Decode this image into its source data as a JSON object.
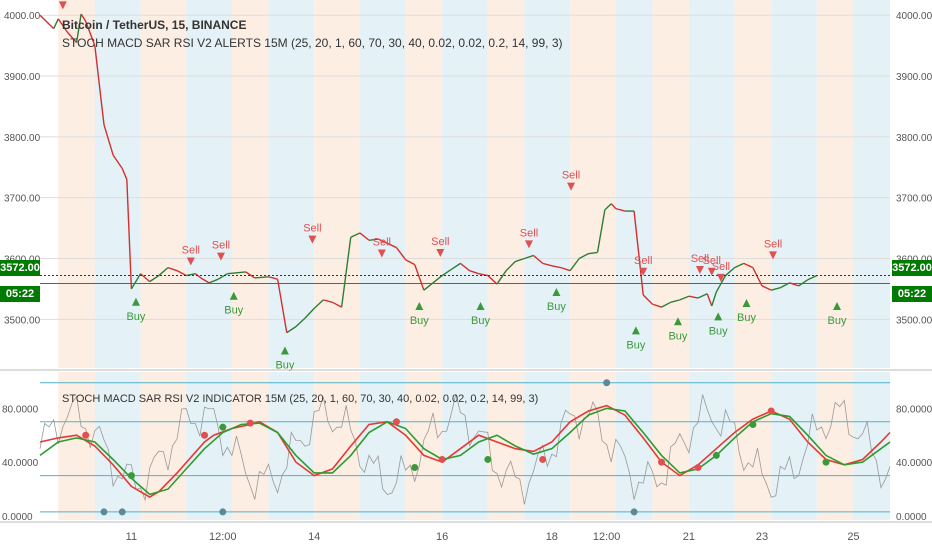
{
  "header": {
    "symbol": "Bitcoin / TetherUS, 15, BINANCE",
    "strategy": "STOCH MACD SAR RSI V2 ALERTS 15M (25, 20, 1, 60, 70, 30, 40, 0.02, 0.02, 0.2, 14, 99, 3)",
    "indicator": "STOCH MACD SAR RSI V2 INDICATOR 15M (25, 20, 1, 60, 70, 30, 40, 0.02, 0.02, 0.2, 14, 99, 3)"
  },
  "price_badge": {
    "value": "3572.00",
    "countdown": "05:22"
  },
  "colors": {
    "up": "#2e7d32",
    "down": "#d32f2f",
    "badge": "#007a00",
    "bg_red": "#fdeee4",
    "bg_blue": "#e4f1f6",
    "grid": "#eeeeee",
    "k_line": "#e53935",
    "d_line": "#2e9b2e",
    "rsi": "#999999",
    "level": "#4fb3c7"
  },
  "chart_data": [
    {
      "type": "line",
      "title": "Bitcoin / TetherUS, 15, BINANCE",
      "x_ticks": [
        "11",
        "12:00",
        "14",
        "16",
        "18",
        "12:00",
        "21",
        "23",
        "25"
      ],
      "y_ticks": [
        "4000.00",
        "3900.00",
        "3800.00",
        "3700.00",
        "3600.00",
        "3500.00"
      ],
      "ylim": [
        3420,
        4025
      ],
      "series": [
        {
          "values": [
            [
              0,
              4000
            ],
            [
              1.5,
              3978
            ],
            [
              2,
              3994
            ],
            [
              3,
              3972
            ],
            [
              4,
              3955
            ],
            [
              4.5,
              4002
            ],
            [
              5,
              3990
            ],
            [
              6,
              3950
            ],
            [
              7,
              3820
            ],
            [
              8,
              3770
            ],
            [
              9,
              3748
            ],
            [
              9.5,
              3730
            ],
            [
              10,
              3550
            ],
            [
              11,
              3575
            ],
            [
              12,
              3562
            ],
            [
              13,
              3572
            ],
            [
              14,
              3585
            ],
            [
              15,
              3580
            ],
            [
              16,
              3572
            ],
            [
              17,
              3575
            ],
            [
              17.6,
              3568
            ],
            [
              18.5,
              3560
            ],
            [
              19.5,
              3566
            ],
            [
              20.5,
              3575
            ],
            [
              22.5,
              3578
            ],
            [
              23.5,
              3568
            ],
            [
              25,
              3570
            ],
            [
              26,
              3566
            ],
            [
              27,
              3478
            ],
            [
              28,
              3488
            ],
            [
              29,
              3502
            ],
            [
              30,
              3518
            ],
            [
              31,
              3532
            ],
            [
              32,
              3528
            ],
            [
              33,
              3520
            ],
            [
              34,
              3635
            ],
            [
              35,
              3642
            ],
            [
              36,
              3630
            ],
            [
              37,
              3632
            ],
            [
              38,
              3625
            ],
            [
              39,
              3618
            ],
            [
              40,
              3598
            ],
            [
              41,
              3590
            ],
            [
              42,
              3548
            ],
            [
              43,
              3560
            ],
            [
              44,
              3572
            ],
            [
              45,
              3582
            ],
            [
              46,
              3592
            ],
            [
              47,
              3580
            ],
            [
              48,
              3575
            ],
            [
              49,
              3572
            ],
            [
              50,
              3558
            ],
            [
              51,
              3580
            ],
            [
              52,
              3595
            ],
            [
              53,
              3600
            ],
            [
              54,
              3605
            ],
            [
              55,
              3592
            ],
            [
              56,
              3588
            ],
            [
              57,
              3585
            ],
            [
              58,
              3580
            ],
            [
              59,
              3600
            ],
            [
              60,
              3608
            ],
            [
              61,
              3610
            ],
            [
              61.8,
              3680
            ],
            [
              62.5,
              3690
            ],
            [
              63,
              3682
            ],
            [
              64,
              3678
            ],
            [
              65,
              3678
            ],
            [
              66,
              3540
            ],
            [
              67,
              3525
            ],
            [
              68,
              3520
            ],
            [
              69,
              3528
            ],
            [
              70,
              3532
            ],
            [
              71,
              3538
            ],
            [
              72,
              3535
            ],
            [
              73,
              3542
            ],
            [
              73.5,
              3522
            ],
            [
              74,
              3545
            ],
            [
              75,
              3572
            ],
            [
              76,
              3585
            ],
            [
              77,
              3592
            ],
            [
              78,
              3585
            ],
            [
              79,
              3555
            ],
            [
              80,
              3548
            ],
            [
              81,
              3552
            ],
            [
              82,
              3560
            ],
            [
              83,
              3555
            ],
            [
              84,
              3565
            ],
            [
              85,
              3572
            ]
          ]
        }
      ],
      "signals": [
        {
          "label": "Sell",
          "x": 2.5,
          "y": 4003
        },
        {
          "label": "Sell",
          "x": 16.5,
          "y": 3582
        },
        {
          "label": "Sell",
          "x": 19.8,
          "y": 3590
        },
        {
          "label": "Sell",
          "x": 29.8,
          "y": 3618
        },
        {
          "label": "Sell",
          "x": 37.4,
          "y": 3595
        },
        {
          "label": "Sell",
          "x": 43.8,
          "y": 3596
        },
        {
          "label": "Sell",
          "x": 53.5,
          "y": 3610
        },
        {
          "label": "Sell",
          "x": 58.1,
          "y": 3705
        },
        {
          "label": "Sell",
          "x": 66,
          "y": 3565
        },
        {
          "label": "Sell",
          "x": 72.2,
          "y": 3568
        },
        {
          "label": "Sell",
          "x": 73.5,
          "y": 3565
        },
        {
          "label": "Sell",
          "x": 74.5,
          "y": 3555
        },
        {
          "label": "Sell",
          "x": 80.2,
          "y": 3592
        },
        {
          "label": "Buy",
          "x": 10.5,
          "y": 3542
        },
        {
          "label": "Buy",
          "x": 21.2,
          "y": 3552
        },
        {
          "label": "Buy",
          "x": 26.8,
          "y": 3462
        },
        {
          "label": "Buy",
          "x": 41.5,
          "y": 3535
        },
        {
          "label": "Buy",
          "x": 48.2,
          "y": 3535
        },
        {
          "label": "Buy",
          "x": 56.5,
          "y": 3558
        },
        {
          "label": "Buy",
          "x": 65.2,
          "y": 3495
        },
        {
          "label": "Buy",
          "x": 69.8,
          "y": 3510
        },
        {
          "label": "Buy",
          "x": 74.2,
          "y": 3518
        },
        {
          "label": "Buy",
          "x": 77.3,
          "y": 3540
        },
        {
          "label": "Buy",
          "x": 87.2,
          "y": 3535
        }
      ]
    },
    {
      "type": "line",
      "title": "STOCH MACD SAR RSI V2 INDICATOR 15M (25, 20, 1, 60, 70, 30, 40, 0.02, 0.02, 0.2, 14, 99, 3)",
      "y_ticks": [
        "80.0000",
        "40.0000",
        "0.0000"
      ],
      "ylim": [
        -3,
        107
      ],
      "levels": [
        99,
        70,
        30,
        3
      ],
      "series": [
        {
          "color": "red",
          "values": [
            [
              0,
              55
            ],
            [
              2,
              58
            ],
            [
              4,
              60
            ],
            [
              6,
              52
            ],
            [
              8,
              38
            ],
            [
              10,
              22
            ],
            [
              12,
              14
            ],
            [
              13,
              18
            ],
            [
              15,
              32
            ],
            [
              18,
              55
            ],
            [
              19,
              60
            ],
            [
              21,
              65
            ],
            [
              23,
              68
            ],
            [
              24,
              70
            ],
            [
              26,
              62
            ],
            [
              28,
              40
            ],
            [
              30,
              30
            ],
            [
              32,
              35
            ],
            [
              34,
              52
            ],
            [
              36,
              68
            ],
            [
              38,
              70
            ],
            [
              40,
              60
            ],
            [
              42,
              45
            ],
            [
              44,
              40
            ],
            [
              46,
              50
            ],
            [
              48,
              60
            ],
            [
              50,
              55
            ],
            [
              52,
              50
            ],
            [
              54,
              48
            ],
            [
              56,
              55
            ],
            [
              58,
              70
            ],
            [
              60,
              78
            ],
            [
              62,
              82
            ],
            [
              64,
              75
            ],
            [
              66,
              58
            ],
            [
              68,
              40
            ],
            [
              70,
              30
            ],
            [
              72,
              38
            ],
            [
              74,
              50
            ],
            [
              76,
              62
            ],
            [
              78,
              72
            ],
            [
              80,
              78
            ],
            [
              82,
              72
            ],
            [
              84,
              55
            ],
            [
              86,
              42
            ],
            [
              88,
              38
            ],
            [
              90,
              42
            ],
            [
              92,
              55
            ],
            [
              93,
              62
            ]
          ]
        },
        {
          "color": "green",
          "values": [
            [
              0,
              45
            ],
            [
              2,
              55
            ],
            [
              4,
              58
            ],
            [
              6,
              55
            ],
            [
              8,
              42
            ],
            [
              10,
              28
            ],
            [
              12,
              16
            ],
            [
              14,
              20
            ],
            [
              16,
              35
            ],
            [
              18,
              50
            ],
            [
              20,
              62
            ],
            [
              22,
              68
            ],
            [
              24,
              69
            ],
            [
              26,
              62
            ],
            [
              28,
              45
            ],
            [
              30,
              32
            ],
            [
              32,
              32
            ],
            [
              34,
              45
            ],
            [
              36,
              62
            ],
            [
              38,
              70
            ],
            [
              40,
              65
            ],
            [
              42,
              50
            ],
            [
              44,
              42
            ],
            [
              46,
              45
            ],
            [
              48,
              55
            ],
            [
              50,
              60
            ],
            [
              52,
              52
            ],
            [
              54,
              46
            ],
            [
              56,
              50
            ],
            [
              58,
              62
            ],
            [
              60,
              75
            ],
            [
              62,
              80
            ],
            [
              64,
              78
            ],
            [
              66,
              62
            ],
            [
              68,
              45
            ],
            [
              70,
              32
            ],
            [
              72,
              35
            ],
            [
              74,
              45
            ],
            [
              76,
              58
            ],
            [
              78,
              70
            ],
            [
              80,
              76
            ],
            [
              82,
              74
            ],
            [
              84,
              60
            ],
            [
              86,
              45
            ],
            [
              88,
              38
            ],
            [
              90,
              40
            ],
            [
              92,
              50
            ],
            [
              93,
              55
            ]
          ]
        }
      ]
    }
  ]
}
